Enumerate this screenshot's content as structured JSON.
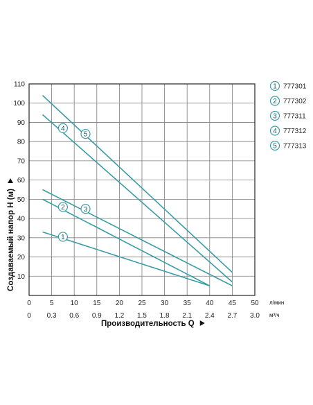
{
  "colors": {
    "line": "#3a9ca6",
    "grid": "#7d7d7d",
    "frame": "#222222",
    "marker_text": "#1f5f63"
  },
  "chart_data": {
    "type": "line",
    "xlabel": "Производительность Q",
    "ylabel": "Создаваемый напор H (м)",
    "x_unit": "л/мин",
    "x2_unit": "м³/ч",
    "xlim": [
      0,
      50
    ],
    "ylim": [
      0,
      110
    ],
    "x_ticks": [
      "0",
      "5",
      "10",
      "15",
      "20",
      "25",
      "30",
      "35",
      "40",
      "45",
      "50"
    ],
    "x2_ticks": [
      "0",
      "0.3",
      "0.6",
      "0.9",
      "1.2",
      "1.5",
      "1.8",
      "2.1",
      "2.4",
      "2.7",
      "3.0"
    ],
    "y_ticks": [
      "10",
      "20",
      "30",
      "40",
      "50",
      "60",
      "70",
      "80",
      "90",
      "100",
      "110"
    ],
    "grid": true,
    "legend_position": "right",
    "series": [
      {
        "name": "777301",
        "marker": "1",
        "x": [
          3,
          40
        ],
        "y": [
          33,
          5
        ],
        "marker_at": [
          7.5,
          30.5
        ]
      },
      {
        "name": "777302",
        "marker": "2",
        "x": [
          3,
          40
        ],
        "y": [
          50,
          5
        ],
        "marker_at": [
          7.5,
          46
        ]
      },
      {
        "name": "777311",
        "marker": "3",
        "x": [
          3,
          45
        ],
        "y": [
          55,
          5
        ],
        "marker_at": [
          12.5,
          45
        ]
      },
      {
        "name": "777312",
        "marker": "4",
        "x": [
          3,
          45
        ],
        "y": [
          94,
          7
        ],
        "marker_at": [
          7.5,
          87
        ]
      },
      {
        "name": "777313",
        "marker": "5",
        "x": [
          3,
          45
        ],
        "y": [
          104,
          12
        ],
        "marker_at": [
          12.5,
          84
        ]
      }
    ]
  }
}
